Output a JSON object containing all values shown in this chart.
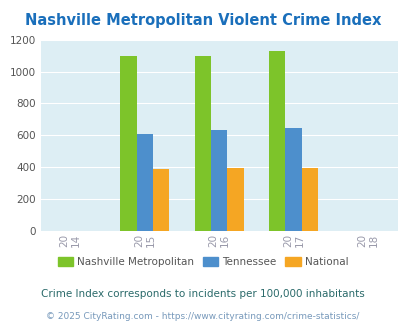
{
  "title": "Nashville Metropolitan Violent Crime Index",
  "title_color": "#1a6fbb",
  "years": [
    2015,
    2016,
    2017
  ],
  "x_ticks": [
    2014,
    2015,
    2016,
    2017,
    2018
  ],
  "nashville": [
    1100,
    1100,
    1130
  ],
  "tennessee": [
    607,
    632,
    645
  ],
  "national": [
    390,
    397,
    398
  ],
  "nashville_color": "#7dc42a",
  "tennessee_color": "#4d8fcc",
  "national_color": "#f5a623",
  "bg_color": "#ddeef4",
  "ylim": [
    0,
    1200
  ],
  "yticks": [
    0,
    200,
    400,
    600,
    800,
    1000,
    1200
  ],
  "bar_width": 0.22,
  "legend_labels": [
    "Nashville Metropolitan",
    "Tennessee",
    "National"
  ],
  "footnote1": "Crime Index corresponds to incidents per 100,000 inhabitants",
  "footnote2": "© 2025 CityRating.com - https://www.cityrating.com/crime-statistics/",
  "footnote1_color": "#2a6a6a",
  "footnote2_color": "#7799bb",
  "tick_color": "#9999aa",
  "ytick_color": "#555555"
}
